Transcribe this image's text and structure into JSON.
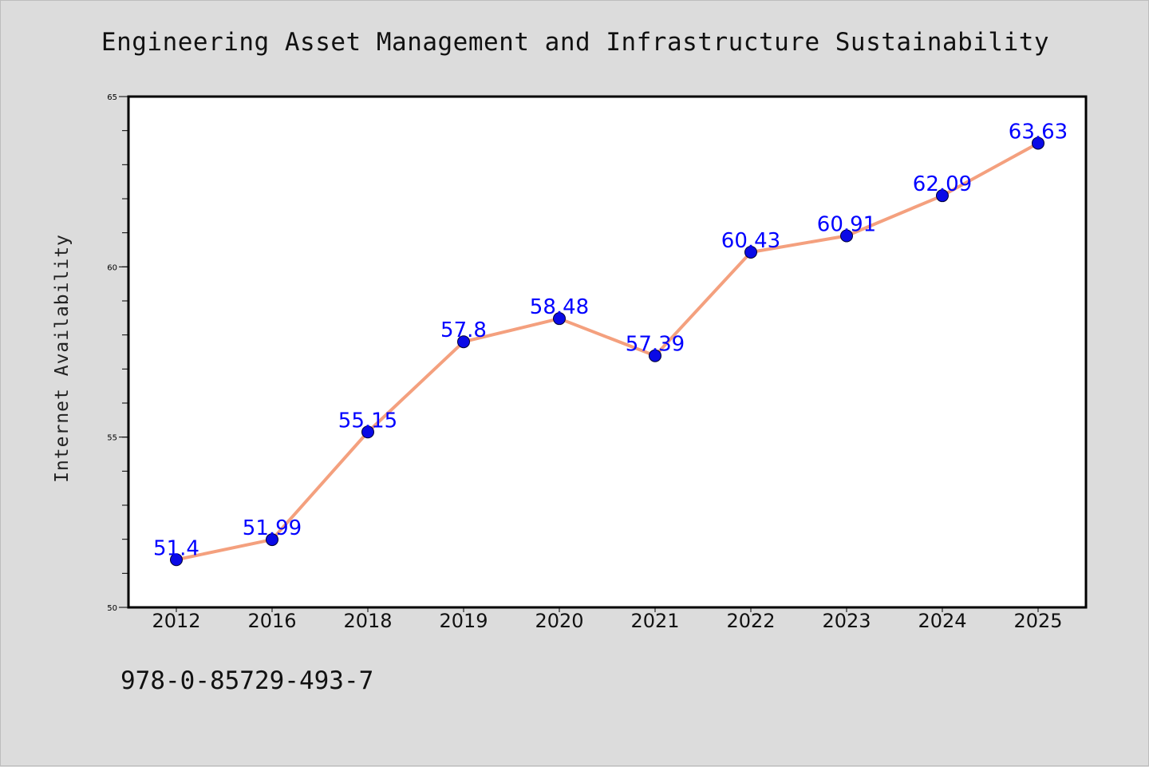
{
  "chart_data": {
    "type": "line",
    "title": "Engineering Asset Management and Infrastructure Sustainability",
    "xlabel": "",
    "ylabel": "Internet Availability",
    "categories": [
      "2012",
      "2016",
      "2018",
      "2019",
      "2020",
      "2021",
      "2022",
      "2023",
      "2024",
      "2025"
    ],
    "series": [
      {
        "values": [
          51.4,
          51.99,
          55.15,
          57.8,
          58.48,
          57.39,
          60.43,
          60.91,
          62.09,
          63.63
        ],
        "labels": [
          "51.4",
          "51.99",
          "55.15",
          "57.8",
          "58.48",
          "57.39",
          "60.43",
          "60.91",
          "62.09",
          "63.63"
        ]
      }
    ],
    "ylim": [
      50,
      65
    ],
    "y_ticks": [
      "50",
      "55",
      "60",
      "65"
    ],
    "y_minor_step": 1,
    "grid": false,
    "line_color": "#f4a07e",
    "marker_color": "#0a0ae6",
    "label_color": "#0000ff",
    "background_color": "#dcdcdc",
    "plot_background": "#ffffff"
  },
  "footer": {
    "code": "978-0-85729-493-7"
  }
}
